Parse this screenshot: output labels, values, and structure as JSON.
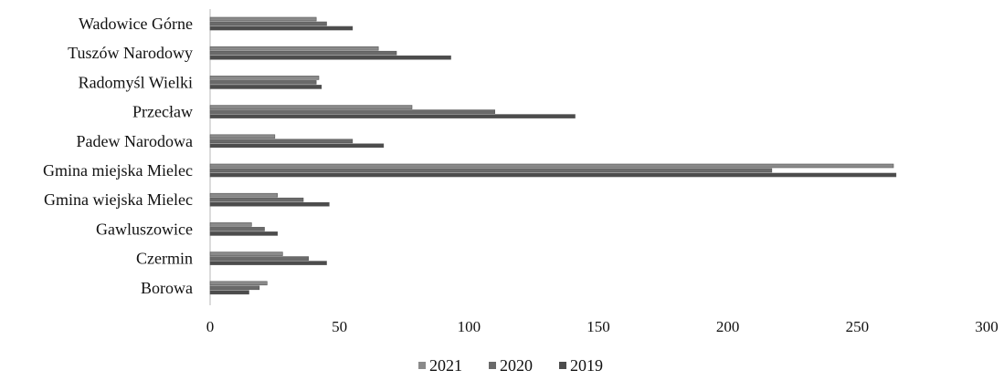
{
  "chart_data": {
    "type": "bar",
    "orientation": "horizontal",
    "title": "",
    "xlabel": "",
    "ylabel": "",
    "categories": [
      "Borowa",
      "Czermin",
      "Gawluszowice",
      "Gmina wiejska Mielec",
      "Gmina miejska Mielec",
      "Padew Narodowa",
      "Przecław",
      "Radomyśl Wielki",
      "Tuszów Narodowy",
      "Wadowice Górne"
    ],
    "series": [
      {
        "name": "2021",
        "color": "#8a8a8a",
        "values": [
          22,
          28,
          16,
          26,
          264,
          25,
          78,
          42,
          65,
          41
        ]
      },
      {
        "name": "2020",
        "color": "#6a6a6a",
        "values": [
          19,
          38,
          21,
          36,
          217,
          55,
          110,
          41,
          72,
          45
        ]
      },
      {
        "name": "2019",
        "color": "#4c4c4c",
        "values": [
          15,
          45,
          26,
          46,
          265,
          67,
          141,
          43,
          93,
          55
        ]
      }
    ],
    "xlim": [
      0,
      300
    ],
    "xticks": [
      0,
      50,
      100,
      150,
      200,
      250,
      300
    ],
    "grid": false,
    "legend_position": "bottom-center"
  }
}
